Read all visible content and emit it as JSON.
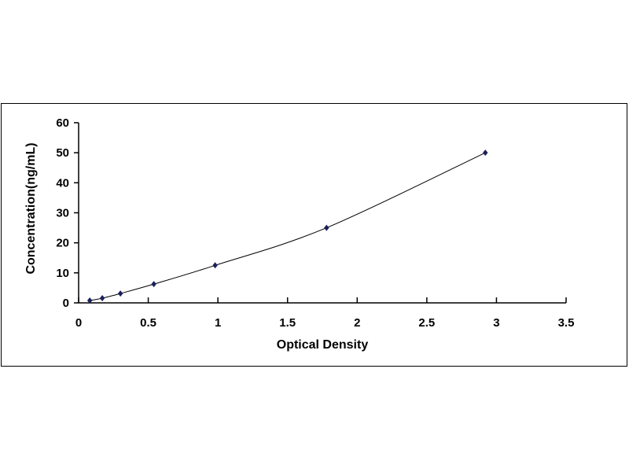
{
  "chart_data": {
    "type": "scatter",
    "xlabel": "Optical Density",
    "ylabel": "Concentration(ng/mL)",
    "xlim": [
      0,
      3.5
    ],
    "ylim": [
      0,
      60
    ],
    "xticks": [
      "0",
      "0.5",
      "1",
      "1.5",
      "2",
      "2.5",
      "3",
      "3.5"
    ],
    "yticks": [
      "0",
      "10",
      "20",
      "30",
      "40",
      "50",
      "60"
    ],
    "grid": false,
    "marker_color": "#1a1f5c",
    "line_color": "#000000",
    "trendline": "smooth",
    "points": [
      {
        "x": 0.08,
        "y": 0.78
      },
      {
        "x": 0.17,
        "y": 1.56
      },
      {
        "x": 0.3,
        "y": 3.12
      },
      {
        "x": 0.54,
        "y": 6.25
      },
      {
        "x": 0.98,
        "y": 12.5
      },
      {
        "x": 1.78,
        "y": 25
      },
      {
        "x": 2.92,
        "y": 50
      }
    ]
  }
}
